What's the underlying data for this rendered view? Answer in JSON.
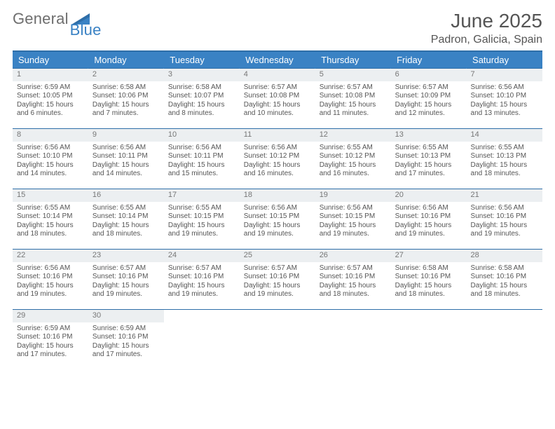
{
  "brand": {
    "word1": "General",
    "word2": "Blue",
    "text_color_gray": "#6e6e6e",
    "text_color_blue": "#3a82c4"
  },
  "header": {
    "title": "June 2025",
    "subtitle": "Padron, Galicia, Spain"
  },
  "theme": {
    "header_bg": "#3a82c4",
    "header_rule": "#2e6ea8",
    "daynum_bg": "#eceff1",
    "text": "#555555"
  },
  "day_names": [
    "Sunday",
    "Monday",
    "Tuesday",
    "Wednesday",
    "Thursday",
    "Friday",
    "Saturday"
  ],
  "weeks": [
    [
      {
        "n": "1",
        "sunrise": "6:59 AM",
        "sunset": "10:05 PM",
        "daylight": "15 hours and 6 minutes."
      },
      {
        "n": "2",
        "sunrise": "6:58 AM",
        "sunset": "10:06 PM",
        "daylight": "15 hours and 7 minutes."
      },
      {
        "n": "3",
        "sunrise": "6:58 AM",
        "sunset": "10:07 PM",
        "daylight": "15 hours and 8 minutes."
      },
      {
        "n": "4",
        "sunrise": "6:57 AM",
        "sunset": "10:08 PM",
        "daylight": "15 hours and 10 minutes."
      },
      {
        "n": "5",
        "sunrise": "6:57 AM",
        "sunset": "10:08 PM",
        "daylight": "15 hours and 11 minutes."
      },
      {
        "n": "6",
        "sunrise": "6:57 AM",
        "sunset": "10:09 PM",
        "daylight": "15 hours and 12 minutes."
      },
      {
        "n": "7",
        "sunrise": "6:56 AM",
        "sunset": "10:10 PM",
        "daylight": "15 hours and 13 minutes."
      }
    ],
    [
      {
        "n": "8",
        "sunrise": "6:56 AM",
        "sunset": "10:10 PM",
        "daylight": "15 hours and 14 minutes."
      },
      {
        "n": "9",
        "sunrise": "6:56 AM",
        "sunset": "10:11 PM",
        "daylight": "15 hours and 14 minutes."
      },
      {
        "n": "10",
        "sunrise": "6:56 AM",
        "sunset": "10:11 PM",
        "daylight": "15 hours and 15 minutes."
      },
      {
        "n": "11",
        "sunrise": "6:56 AM",
        "sunset": "10:12 PM",
        "daylight": "15 hours and 16 minutes."
      },
      {
        "n": "12",
        "sunrise": "6:55 AM",
        "sunset": "10:12 PM",
        "daylight": "15 hours and 16 minutes."
      },
      {
        "n": "13",
        "sunrise": "6:55 AM",
        "sunset": "10:13 PM",
        "daylight": "15 hours and 17 minutes."
      },
      {
        "n": "14",
        "sunrise": "6:55 AM",
        "sunset": "10:13 PM",
        "daylight": "15 hours and 18 minutes."
      }
    ],
    [
      {
        "n": "15",
        "sunrise": "6:55 AM",
        "sunset": "10:14 PM",
        "daylight": "15 hours and 18 minutes."
      },
      {
        "n": "16",
        "sunrise": "6:55 AM",
        "sunset": "10:14 PM",
        "daylight": "15 hours and 18 minutes."
      },
      {
        "n": "17",
        "sunrise": "6:55 AM",
        "sunset": "10:15 PM",
        "daylight": "15 hours and 19 minutes."
      },
      {
        "n": "18",
        "sunrise": "6:56 AM",
        "sunset": "10:15 PM",
        "daylight": "15 hours and 19 minutes."
      },
      {
        "n": "19",
        "sunrise": "6:56 AM",
        "sunset": "10:15 PM",
        "daylight": "15 hours and 19 minutes."
      },
      {
        "n": "20",
        "sunrise": "6:56 AM",
        "sunset": "10:16 PM",
        "daylight": "15 hours and 19 minutes."
      },
      {
        "n": "21",
        "sunrise": "6:56 AM",
        "sunset": "10:16 PM",
        "daylight": "15 hours and 19 minutes."
      }
    ],
    [
      {
        "n": "22",
        "sunrise": "6:56 AM",
        "sunset": "10:16 PM",
        "daylight": "15 hours and 19 minutes."
      },
      {
        "n": "23",
        "sunrise": "6:57 AM",
        "sunset": "10:16 PM",
        "daylight": "15 hours and 19 minutes."
      },
      {
        "n": "24",
        "sunrise": "6:57 AM",
        "sunset": "10:16 PM",
        "daylight": "15 hours and 19 minutes."
      },
      {
        "n": "25",
        "sunrise": "6:57 AM",
        "sunset": "10:16 PM",
        "daylight": "15 hours and 19 minutes."
      },
      {
        "n": "26",
        "sunrise": "6:57 AM",
        "sunset": "10:16 PM",
        "daylight": "15 hours and 18 minutes."
      },
      {
        "n": "27",
        "sunrise": "6:58 AM",
        "sunset": "10:16 PM",
        "daylight": "15 hours and 18 minutes."
      },
      {
        "n": "28",
        "sunrise": "6:58 AM",
        "sunset": "10:16 PM",
        "daylight": "15 hours and 18 minutes."
      }
    ],
    [
      {
        "n": "29",
        "sunrise": "6:59 AM",
        "sunset": "10:16 PM",
        "daylight": "15 hours and 17 minutes."
      },
      {
        "n": "30",
        "sunrise": "6:59 AM",
        "sunset": "10:16 PM",
        "daylight": "15 hours and 17 minutes."
      },
      null,
      null,
      null,
      null,
      null
    ]
  ],
  "labels": {
    "sunrise": "Sunrise:",
    "sunset": "Sunset:",
    "daylight": "Daylight:"
  }
}
